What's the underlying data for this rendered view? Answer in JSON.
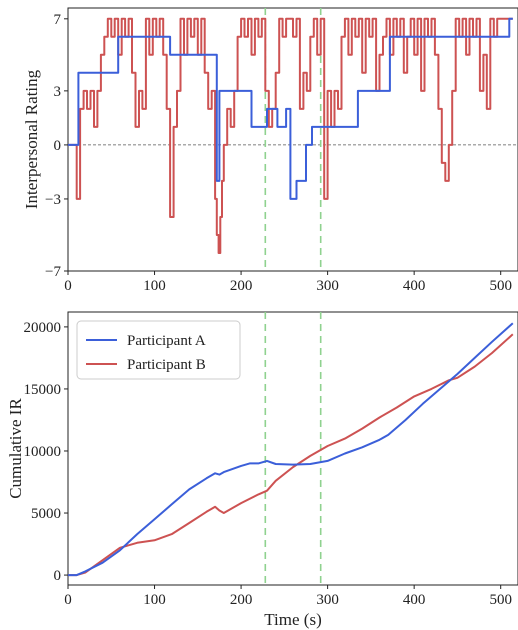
{
  "chart_data": [
    {
      "type": "line",
      "ylabel": "Interpersonal Rating",
      "xlabel": "",
      "xlim": [
        0,
        520
      ],
      "ylim": [
        -7,
        7.6
      ],
      "xticks": [
        0,
        100,
        200,
        300,
        400,
        500
      ],
      "yticks": [
        -7,
        -3,
        0,
        3,
        7
      ],
      "zero_line": 0,
      "vlines": [
        228,
        292
      ],
      "colors": {
        "A": "#3b5fd9",
        "B": "#cd5252",
        "vline": "#8fd28f"
      },
      "series": [
        {
          "key": "A",
          "x": [
            0,
            10,
            12,
            55,
            58,
            115,
            118,
            170,
            172,
            175,
            178,
            200,
            210,
            212,
            228,
            230,
            240,
            242,
            250,
            252,
            257,
            260,
            264,
            272,
            275,
            280,
            282,
            330,
            335,
            370,
            372,
            410,
            415,
            470,
            472,
            510,
            514
          ],
          "y": [
            0,
            0,
            4,
            4,
            6,
            6,
            5,
            5,
            -2,
            3,
            3,
            3,
            3,
            1,
            1,
            2,
            2,
            1,
            1,
            2,
            -3,
            -3,
            -2,
            -2,
            0,
            0,
            1,
            1,
            3,
            3,
            6,
            6,
            6,
            6,
            6,
            7,
            7
          ]
        },
        {
          "key": "B",
          "x": [
            0,
            8,
            10,
            14,
            18,
            22,
            26,
            30,
            34,
            38,
            42,
            46,
            50,
            54,
            58,
            62,
            66,
            70,
            74,
            78,
            82,
            86,
            90,
            94,
            98,
            102,
            106,
            110,
            114,
            118,
            122,
            126,
            130,
            134,
            138,
            142,
            146,
            150,
            154,
            158,
            162,
            166,
            170,
            172,
            174,
            176,
            178,
            180,
            184,
            188,
            192,
            196,
            200,
            204,
            208,
            212,
            216,
            220,
            224,
            228,
            232,
            236,
            240,
            244,
            248,
            252,
            256,
            260,
            264,
            268,
            272,
            276,
            280,
            284,
            288,
            292,
            296,
            300,
            304,
            308,
            312,
            316,
            320,
            324,
            328,
            332,
            336,
            340,
            344,
            348,
            352,
            356,
            360,
            364,
            368,
            372,
            376,
            380,
            384,
            388,
            392,
            396,
            400,
            404,
            408,
            412,
            416,
            420,
            424,
            428,
            432,
            436,
            440,
            444,
            448,
            452,
            456,
            460,
            464,
            468,
            472,
            476,
            480,
            484,
            488,
            492,
            496,
            500,
            504,
            508,
            514
          ],
          "y": [
            0,
            0,
            -3,
            2,
            3,
            2,
            3,
            1,
            3,
            5,
            6,
            7,
            6,
            7,
            5,
            7,
            6,
            7,
            4,
            1,
            3,
            2,
            7,
            5,
            7,
            6,
            7,
            5,
            2,
            -4,
            1,
            3,
            7,
            5,
            7,
            6,
            7,
            5,
            7,
            4,
            2,
            3,
            -3,
            -5,
            -6,
            -4,
            -2,
            0,
            2,
            1,
            3,
            6,
            7,
            6,
            7,
            5,
            7,
            6,
            7,
            3,
            1,
            2,
            4,
            7,
            6,
            7,
            7,
            6,
            7,
            2,
            4,
            3,
            6,
            7,
            5,
            7,
            -3,
            3,
            1,
            3,
            2,
            6,
            7,
            5,
            7,
            6,
            7,
            4,
            7,
            6,
            7,
            3,
            5,
            6,
            7,
            5,
            7,
            6,
            7,
            4,
            6,
            7,
            5,
            7,
            3,
            7,
            6,
            7,
            5,
            2,
            -1,
            -2,
            0,
            3,
            7,
            6,
            7,
            5,
            7,
            6,
            7,
            3,
            5,
            2,
            7,
            6,
            7,
            7,
            7,
            7,
            7
          ]
        }
      ]
    },
    {
      "type": "line",
      "ylabel": "Cumulative IR",
      "xlabel": "Time (s)",
      "xlim": [
        0,
        520
      ],
      "ylim": [
        -800,
        21200
      ],
      "xticks": [
        0,
        100,
        200,
        300,
        400,
        500
      ],
      "yticks": [
        0,
        5000,
        10000,
        15000,
        20000
      ],
      "vlines": [
        228,
        292
      ],
      "legend": [
        "Participant A",
        "Participant B"
      ],
      "legend_position": "top-left",
      "colors": {
        "A": "#3b5fd9",
        "B": "#cd5252",
        "vline": "#8fd28f"
      },
      "series": [
        {
          "name": "Participant A",
          "key": "A",
          "x": [
            0,
            10,
            20,
            40,
            60,
            80,
            100,
            120,
            140,
            160,
            170,
            175,
            180,
            200,
            210,
            220,
            230,
            240,
            260,
            280,
            300,
            320,
            340,
            360,
            370,
            390,
            410,
            430,
            450,
            470,
            490,
            514
          ],
          "y": [
            0,
            0,
            300,
            1000,
            2000,
            3300,
            4500,
            5700,
            6900,
            7800,
            8200,
            8100,
            8300,
            8800,
            9000,
            9000,
            9200,
            8950,
            8900,
            8950,
            9200,
            9800,
            10300,
            10900,
            11300,
            12500,
            13800,
            15000,
            16200,
            17500,
            18800,
            20300
          ]
        },
        {
          "name": "Participant B",
          "key": "B",
          "x": [
            0,
            10,
            20,
            40,
            60,
            80,
            100,
            120,
            140,
            160,
            170,
            175,
            180,
            200,
            220,
            230,
            240,
            260,
            280,
            300,
            320,
            340,
            360,
            380,
            400,
            420,
            440,
            450,
            470,
            490,
            514
          ],
          "y": [
            0,
            0,
            200,
            1200,
            2200,
            2600,
            2800,
            3300,
            4200,
            5100,
            5500,
            5200,
            5000,
            5800,
            6500,
            6800,
            7600,
            8700,
            9600,
            10400,
            11000,
            11800,
            12700,
            13500,
            14400,
            15000,
            15700,
            15900,
            16800,
            17900,
            19400
          ]
        }
      ]
    }
  ]
}
